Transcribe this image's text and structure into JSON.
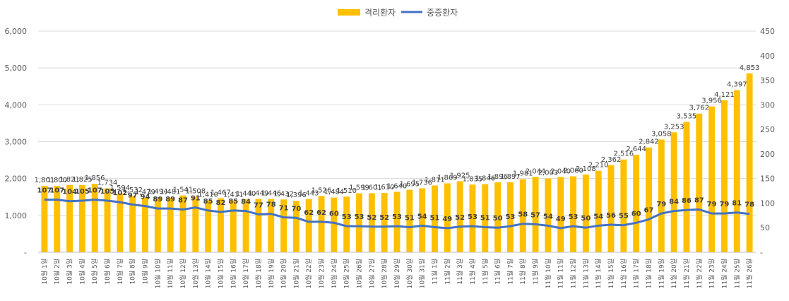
{
  "chart_data": {
    "type": "bar",
    "categories": [
      "10월 1일",
      "10월 2일",
      "10월 3일",
      "10월 4일",
      "10월 5일",
      "10월 6일",
      "10월 7일",
      "10월 8일",
      "10월 9일",
      "10월 10일",
      "10월 11일",
      "10월 12일",
      "10월 13일",
      "10월 14일",
      "10월 15일",
      "10월 16일",
      "10월 17일",
      "10월 18일",
      "10월 19일",
      "10월 20일",
      "10월 21일",
      "10월 22일",
      "10월 23일",
      "10월 24일",
      "10월 25일",
      "10월 26일",
      "10월 27일",
      "10월 28일",
      "10월 29일",
      "10월 30일",
      "10월 31일",
      "11월 1일",
      "11월 2일",
      "11월 3일",
      "11월 4일",
      "11월 5일",
      "11월 6일",
      "11월 7일",
      "11월 8일",
      "11월 9일",
      "11월 10일",
      "11월 11일",
      "11월 12일",
      "11월 13일",
      "11월 14일",
      "11월 15일",
      "11월 16일",
      "11월 17일",
      "11월 18일",
      "11월 19일",
      "11월 20일",
      "11월 21일",
      "11월 22일",
      "11월 23일",
      "11월 24일",
      "11월 25일",
      "11월 26일"
    ],
    "series": [
      {
        "name": "격리환자",
        "type": "bar",
        "axis": "left",
        "color": "#FFC000",
        "values": [
          1801,
          1800,
          1821,
          1825,
          1856,
          1734,
          1594,
          1532,
          1479,
          1494,
          1481,
          1541,
          1508,
          1410,
          1467,
          1411,
          1440,
          1449,
          1446,
          1432,
          1396,
          1443,
          1526,
          1484,
          1510,
          1599,
          1601,
          1610,
          1640,
          1695,
          1736,
          1811,
          1869,
          1925,
          1835,
          1846,
          1896,
          1897,
          1981,
          2044,
          2003,
          2040,
          2060,
          2108,
          2210,
          2362,
          2516,
          2644,
          2842,
          3058,
          3253,
          3535,
          3762,
          3956,
          4121,
          4397,
          4853
        ],
        "labels": [
          "1,801",
          "1,800",
          "1,821",
          "1,825",
          "1,856",
          "1,734",
          "1,594",
          "1,532",
          "1,479",
          "1,494",
          "1,481",
          "1,541",
          "1,508",
          "1,410",
          "1,467",
          "1,411",
          "1,440",
          "1,449",
          "1,446",
          "1,432",
          "1,396",
          "1,443",
          "1,526",
          "1,484",
          "1,510",
          "1,599",
          "1,601",
          "1,610",
          "1,640",
          "1,695",
          "1,736",
          "1,811",
          "1,869",
          "1,925",
          "1,835",
          "1,846",
          "1,896",
          "1,897",
          "1,981",
          "2,044",
          "2,003",
          "2,040",
          "2,060",
          "2,108",
          "2,210",
          "2,362",
          "2,516",
          "2,644",
          "2,842",
          "3,058",
          "3,253",
          "3,535",
          "3,762",
          "3,956",
          "4,121",
          "4,397",
          "4,853"
        ]
      },
      {
        "name": "중증환자",
        "type": "line",
        "axis": "right",
        "color": "#4472C4",
        "values": [
          107,
          107,
          104,
          105,
          107,
          105,
          102,
          97,
          94,
          89,
          89,
          87,
          91,
          85,
          82,
          85,
          84,
          77,
          78,
          71,
          70,
          62,
          62,
          60,
          53,
          53,
          52,
          52,
          53,
          51,
          54,
          51,
          49,
          52,
          53,
          51,
          50,
          53,
          58,
          57,
          54,
          49,
          53,
          50,
          54,
          56,
          55,
          60,
          67,
          79,
          84,
          86,
          87,
          79,
          79,
          81,
          78
        ]
      }
    ],
    "y_left": {
      "ylim": [
        0,
        6000
      ],
      "ticks": [
        0,
        1000,
        2000,
        3000,
        4000,
        5000,
        6000
      ],
      "tick_labels": [
        "-",
        "1,000",
        "2,000",
        "3,000",
        "4,000",
        "5,000",
        "6,000"
      ]
    },
    "y_right": {
      "ylim": [
        0,
        450
      ],
      "ticks": [
        0,
        50,
        100,
        150,
        200,
        250,
        300,
        350,
        400,
        450
      ],
      "tick_labels": [
        "-",
        "50",
        "100",
        "150",
        "200",
        "250",
        "300",
        "350",
        "400",
        "450"
      ]
    },
    "grid": true,
    "legend_position": "top-center",
    "title": "",
    "xlabel": "",
    "ylabel": ""
  }
}
